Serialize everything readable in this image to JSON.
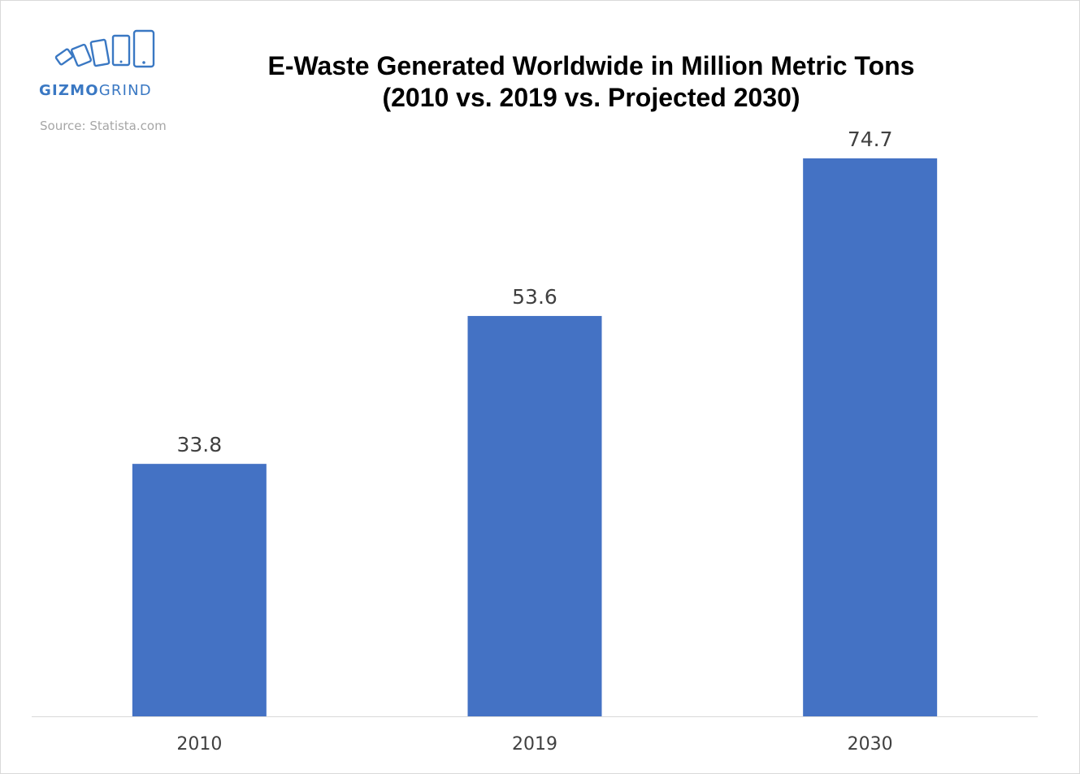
{
  "brand": {
    "name_strong": "GIZMO",
    "name_light": "GRIND",
    "color": "#3a78c3"
  },
  "source": "Source: Statista.com",
  "chart_data": {
    "type": "bar",
    "title_line1": "E-Waste Generated Worldwide in Million Metric Tons",
    "title_line2": "(2010 vs. 2019 vs. Projected 2030)",
    "categories": [
      "2010",
      "2019",
      "2030"
    ],
    "values": [
      33.8,
      53.6,
      74.7
    ],
    "value_labels": [
      "33.8",
      "53.6",
      "74.7"
    ],
    "xlabel": "",
    "ylabel": "",
    "ylim": [
      0,
      74.7
    ],
    "grid": false,
    "legend": "none",
    "bar_color": "#4472c4",
    "axis_color": "#d9d9d9"
  }
}
